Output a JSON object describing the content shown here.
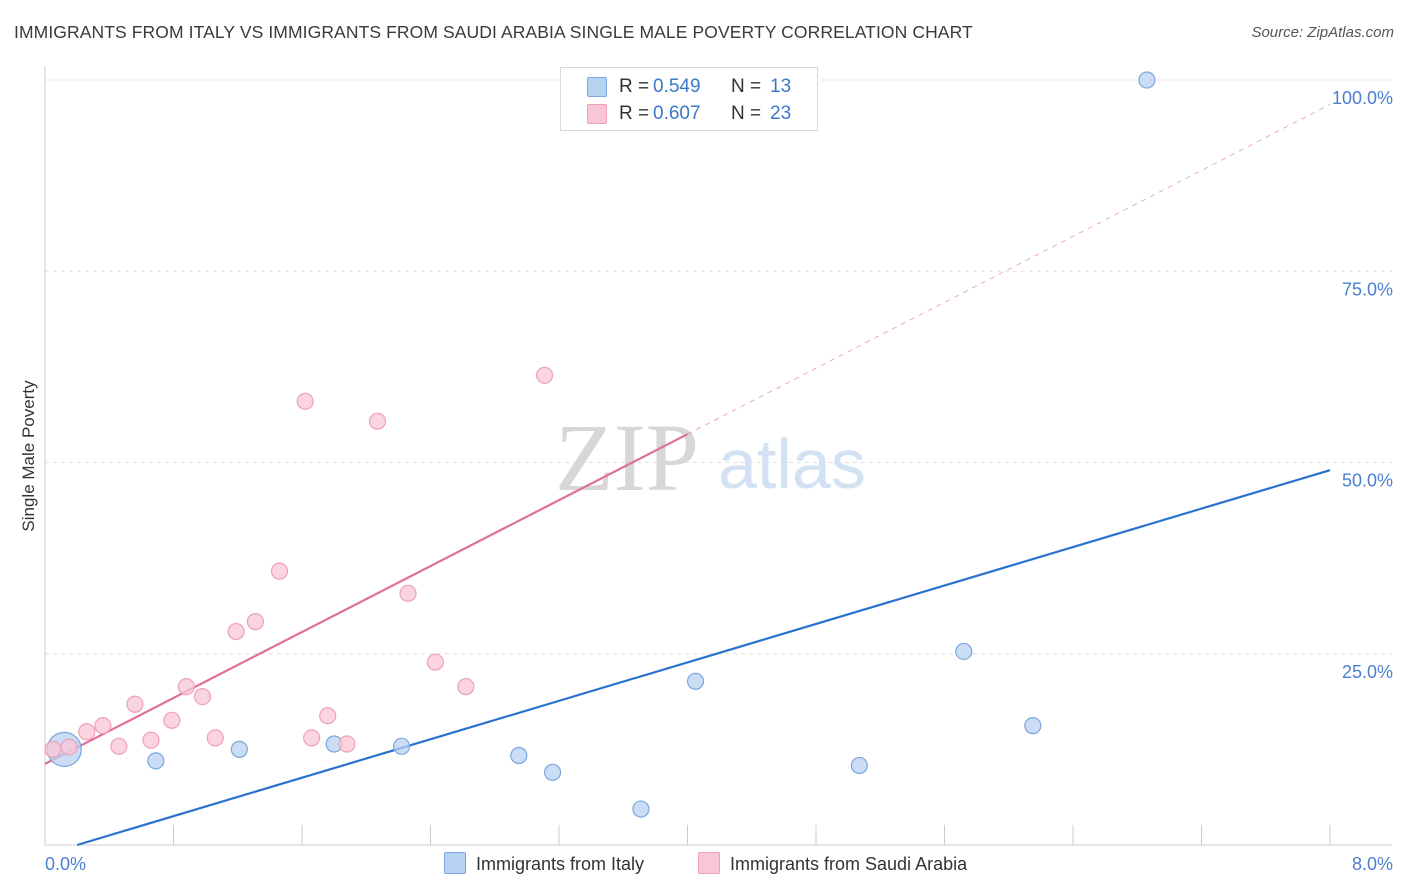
{
  "title": "IMMIGRANTS FROM ITALY VS IMMIGRANTS FROM SAUDI ARABIA SINGLE MALE POVERTY CORRELATION CHART",
  "source": "Source: ZipAtlas.com",
  "watermark": {
    "zip": "ZIP",
    "atlas": "atlas"
  },
  "legend": {
    "rows": [
      {
        "r_label": "R =",
        "r_value": "0.549",
        "n_label": "N =",
        "n_value": "13"
      },
      {
        "r_label": "R =",
        "r_value": "0.607",
        "n_label": "N =",
        "n_value": "23"
      }
    ]
  },
  "bottom_legend": {
    "italy": "Immigrants from Italy",
    "saudi": "Immigrants from Saudi Arabia"
  },
  "colors": {
    "italy_fill": "#b8d2f2",
    "italy_stroke": "#7aa6dd",
    "italy_line": "#2a72d0",
    "saudi_fill": "#f8c6d4",
    "saudi_stroke": "#eea0b6",
    "saudi_line": "#e0709a",
    "tick_text": "#4a7fd0",
    "grid": "#e0e0e0"
  },
  "chart_data": {
    "type": "scatter",
    "title": "IMMIGRANTS FROM ITALY VS IMMIGRANTS FROM SAUDI ARABIA SINGLE MALE POVERTY CORRELATION CHART",
    "xlabel": "",
    "ylabel": "Single Male Poverty",
    "xlim": [
      0,
      8
    ],
    "ylim": [
      0,
      100
    ],
    "x_tick_labels": [
      "0.0%",
      "8.0%"
    ],
    "y_ticks": [
      25,
      50,
      75,
      100
    ],
    "y_tick_labels": [
      "25.0%",
      "50.0%",
      "75.0%",
      "100.0%"
    ],
    "grid": true,
    "legend_position": "top-center",
    "series": [
      {
        "name": "Immigrants from Italy",
        "r": 0.549,
        "n": 13,
        "points": [
          {
            "x": 0.12,
            "y": 12.5,
            "size": "large"
          },
          {
            "x": 0.69,
            "y": 11.0
          },
          {
            "x": 1.21,
            "y": 12.5
          },
          {
            "x": 1.8,
            "y": 13.2
          },
          {
            "x": 2.22,
            "y": 12.9
          },
          {
            "x": 2.95,
            "y": 11.7
          },
          {
            "x": 3.16,
            "y": 9.5
          },
          {
            "x": 3.71,
            "y": 4.7
          },
          {
            "x": 4.05,
            "y": 21.4
          },
          {
            "x": 5.07,
            "y": 10.4
          },
          {
            "x": 5.72,
            "y": 25.3
          },
          {
            "x": 6.15,
            "y": 15.6
          },
          {
            "x": 6.86,
            "y": 100.0
          }
        ],
        "trend": {
          "x": [
            0.2,
            8.0
          ],
          "y": [
            0.0,
            49.0
          ]
        }
      },
      {
        "name": "Immigrants from Saudi Arabia",
        "r": 0.607,
        "n": 23,
        "points": [
          {
            "x": 0.05,
            "y": 12.5
          },
          {
            "x": 0.15,
            "y": 12.8
          },
          {
            "x": 0.26,
            "y": 14.8
          },
          {
            "x": 0.36,
            "y": 15.6
          },
          {
            "x": 0.46,
            "y": 12.9
          },
          {
            "x": 0.56,
            "y": 18.4
          },
          {
            "x": 0.66,
            "y": 13.7
          },
          {
            "x": 0.79,
            "y": 16.3
          },
          {
            "x": 0.88,
            "y": 20.7
          },
          {
            "x": 0.98,
            "y": 19.4
          },
          {
            "x": 1.06,
            "y": 14.0
          },
          {
            "x": 1.19,
            "y": 27.9
          },
          {
            "x": 1.31,
            "y": 29.2
          },
          {
            "x": 1.46,
            "y": 35.8
          },
          {
            "x": 1.62,
            "y": 58.0
          },
          {
            "x": 1.66,
            "y": 14.0
          },
          {
            "x": 1.76,
            "y": 16.9
          },
          {
            "x": 1.88,
            "y": 13.2
          },
          {
            "x": 2.07,
            "y": 55.4
          },
          {
            "x": 2.26,
            "y": 32.9
          },
          {
            "x": 2.43,
            "y": 23.9
          },
          {
            "x": 2.62,
            "y": 20.7
          },
          {
            "x": 3.11,
            "y": 61.4
          }
        ],
        "trend": {
          "x": [
            0.0,
            4.0
          ],
          "y": [
            10.6,
            53.7
          ]
        },
        "trend_extension": {
          "x": [
            4.0,
            8.0
          ],
          "y": [
            53.7,
            96.8
          ]
        }
      }
    ]
  }
}
